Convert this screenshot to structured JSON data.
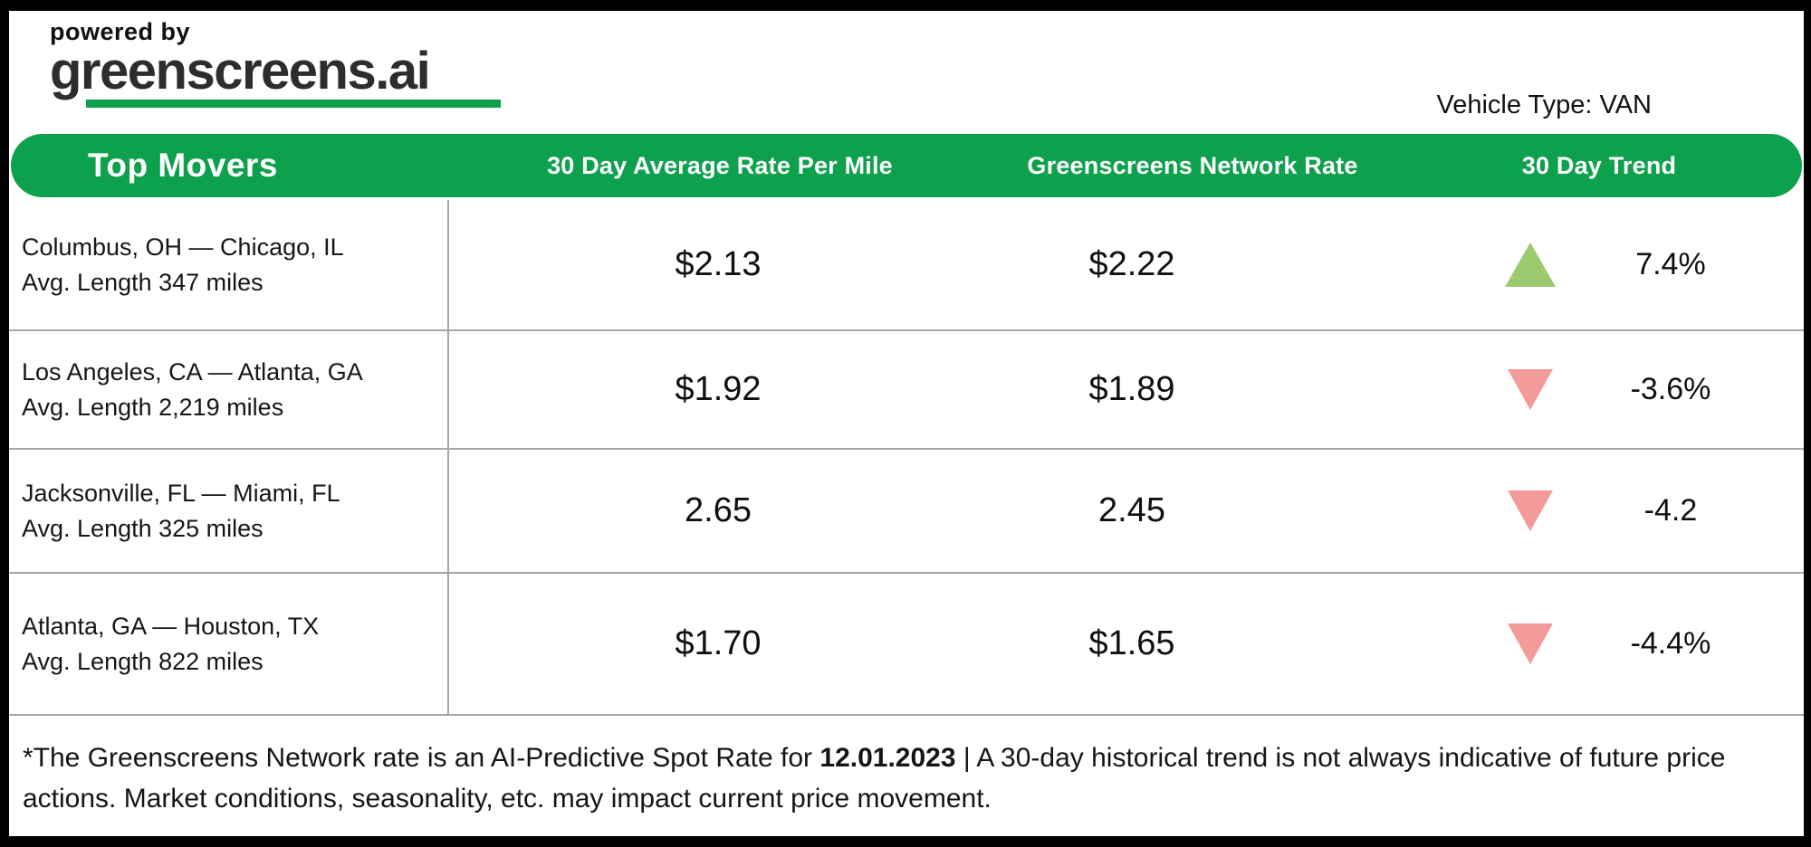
{
  "header": {
    "powered_by": "powered by",
    "brand": "greenscreens.ai",
    "vehicle_type": "Vehicle Type: VAN"
  },
  "table": {
    "columns": [
      "Top Movers",
      "30 Day Average Rate Per Mile",
      "Greenscreens Network Rate",
      "30 Day Trend"
    ],
    "rows": [
      {
        "lane": "Columbus, OH — Chicago, IL",
        "avg_length": "Avg. Length 347 miles",
        "avg_rate": "$2.13",
        "network_rate": "$2.22",
        "trend_direction": "up",
        "trend_value": "7.4%"
      },
      {
        "lane": "Los Angeles, CA — Atlanta, GA",
        "avg_length": "Avg. Length 2,219 miles",
        "avg_rate": "$1.92",
        "network_rate": "$1.89",
        "trend_direction": "down",
        "trend_value": "-3.6%"
      },
      {
        "lane": "Jacksonville, FL — Miami, FL",
        "avg_length": "Avg. Length 325 miles",
        "avg_rate": "2.65",
        "network_rate": "2.45",
        "trend_direction": "down",
        "trend_value": "-4.2"
      },
      {
        "lane": "Atlanta, GA — Houston, TX",
        "avg_length": "Avg. Length 822 miles",
        "avg_rate": "$1.70",
        "network_rate": "$1.65",
        "trend_direction": "down",
        "trend_value": "-4.4%"
      }
    ]
  },
  "footer": {
    "note_prefix": "*The Greenscreens Network rate is an AI-Predictive Spot Rate for ",
    "note_date": "12.01.2023",
    "note_suffix": " | A 30-day historical trend is not always indicative of future price actions. Market conditions, seasonality, etc. may impact current price movement."
  },
  "colors": {
    "brand_green": "#0da04d",
    "trend_up_green": "#9bca6f",
    "trend_down_red": "#f29b98"
  }
}
